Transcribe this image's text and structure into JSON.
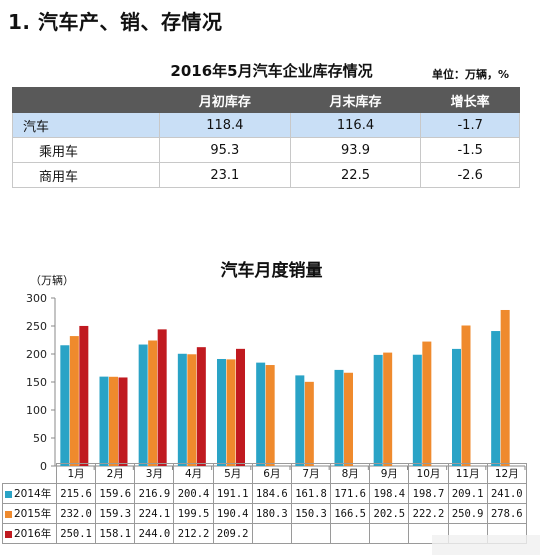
{
  "section_title": "1. 汽车产、销、存情况",
  "inventory_table": {
    "title": "2016年5月汽车企业库存情况",
    "unit_note": "单位：万辆，%",
    "headers": [
      "",
      "月初库存",
      "月末库存",
      "增长率"
    ],
    "rows": [
      {
        "label": "汽车",
        "begin": "118.4",
        "end": "116.4",
        "growth": "-1.7"
      },
      {
        "label": "乘用车",
        "begin": "95.3",
        "end": "93.9",
        "growth": "-1.5"
      },
      {
        "label": "商用车",
        "begin": "23.1",
        "end": "22.5",
        "growth": "-2.6"
      }
    ]
  },
  "chart_data": {
    "type": "bar",
    "title": "汽车月度销量",
    "ylabel": "（万辆）",
    "ylim": [
      0,
      300
    ],
    "yticks": [
      "0",
      "50",
      "100",
      "150",
      "200",
      "250",
      "300"
    ],
    "categories": [
      "1月",
      "2月",
      "3月",
      "4月",
      "5月",
      "6月",
      "7月",
      "8月",
      "9月",
      "10月",
      "11月",
      "12月"
    ],
    "series": [
      {
        "name": "2014年",
        "color": "#2aa3c6",
        "values": [
          215.6,
          159.6,
          216.9,
          200.4,
          191.1,
          184.6,
          161.8,
          171.6,
          198.4,
          198.7,
          209.1,
          241.0
        ],
        "labels": [
          "215.6",
          "159.6",
          "216.9",
          "200.4",
          "191.1",
          "184.6",
          "161.8",
          "171.6",
          "198.4",
          "198.7",
          "209.1",
          "241.0"
        ]
      },
      {
        "name": "2015年",
        "color": "#ef8a2d",
        "values": [
          232.0,
          159.3,
          224.1,
          199.5,
          190.4,
          180.3,
          150.3,
          166.5,
          202.5,
          222.2,
          250.9,
          278.6
        ],
        "labels": [
          "232.0",
          "159.3",
          "224.1",
          "199.5",
          "190.4",
          "180.3",
          "150.3",
          "166.5",
          "202.5",
          "222.2",
          "250.9",
          "278.6"
        ]
      },
      {
        "name": "2016年",
        "color": "#c01a20",
        "values": [
          250.1,
          158.1,
          244.0,
          212.2,
          209.2,
          null,
          null,
          null,
          null,
          null,
          null,
          null
        ],
        "labels": [
          "250.1",
          "158.1",
          "244.0",
          "212.2",
          "209.2",
          "",
          "",
          "",
          "",
          "",
          "",
          ""
        ]
      }
    ],
    "grid": false,
    "legend": "data table below chart"
  }
}
